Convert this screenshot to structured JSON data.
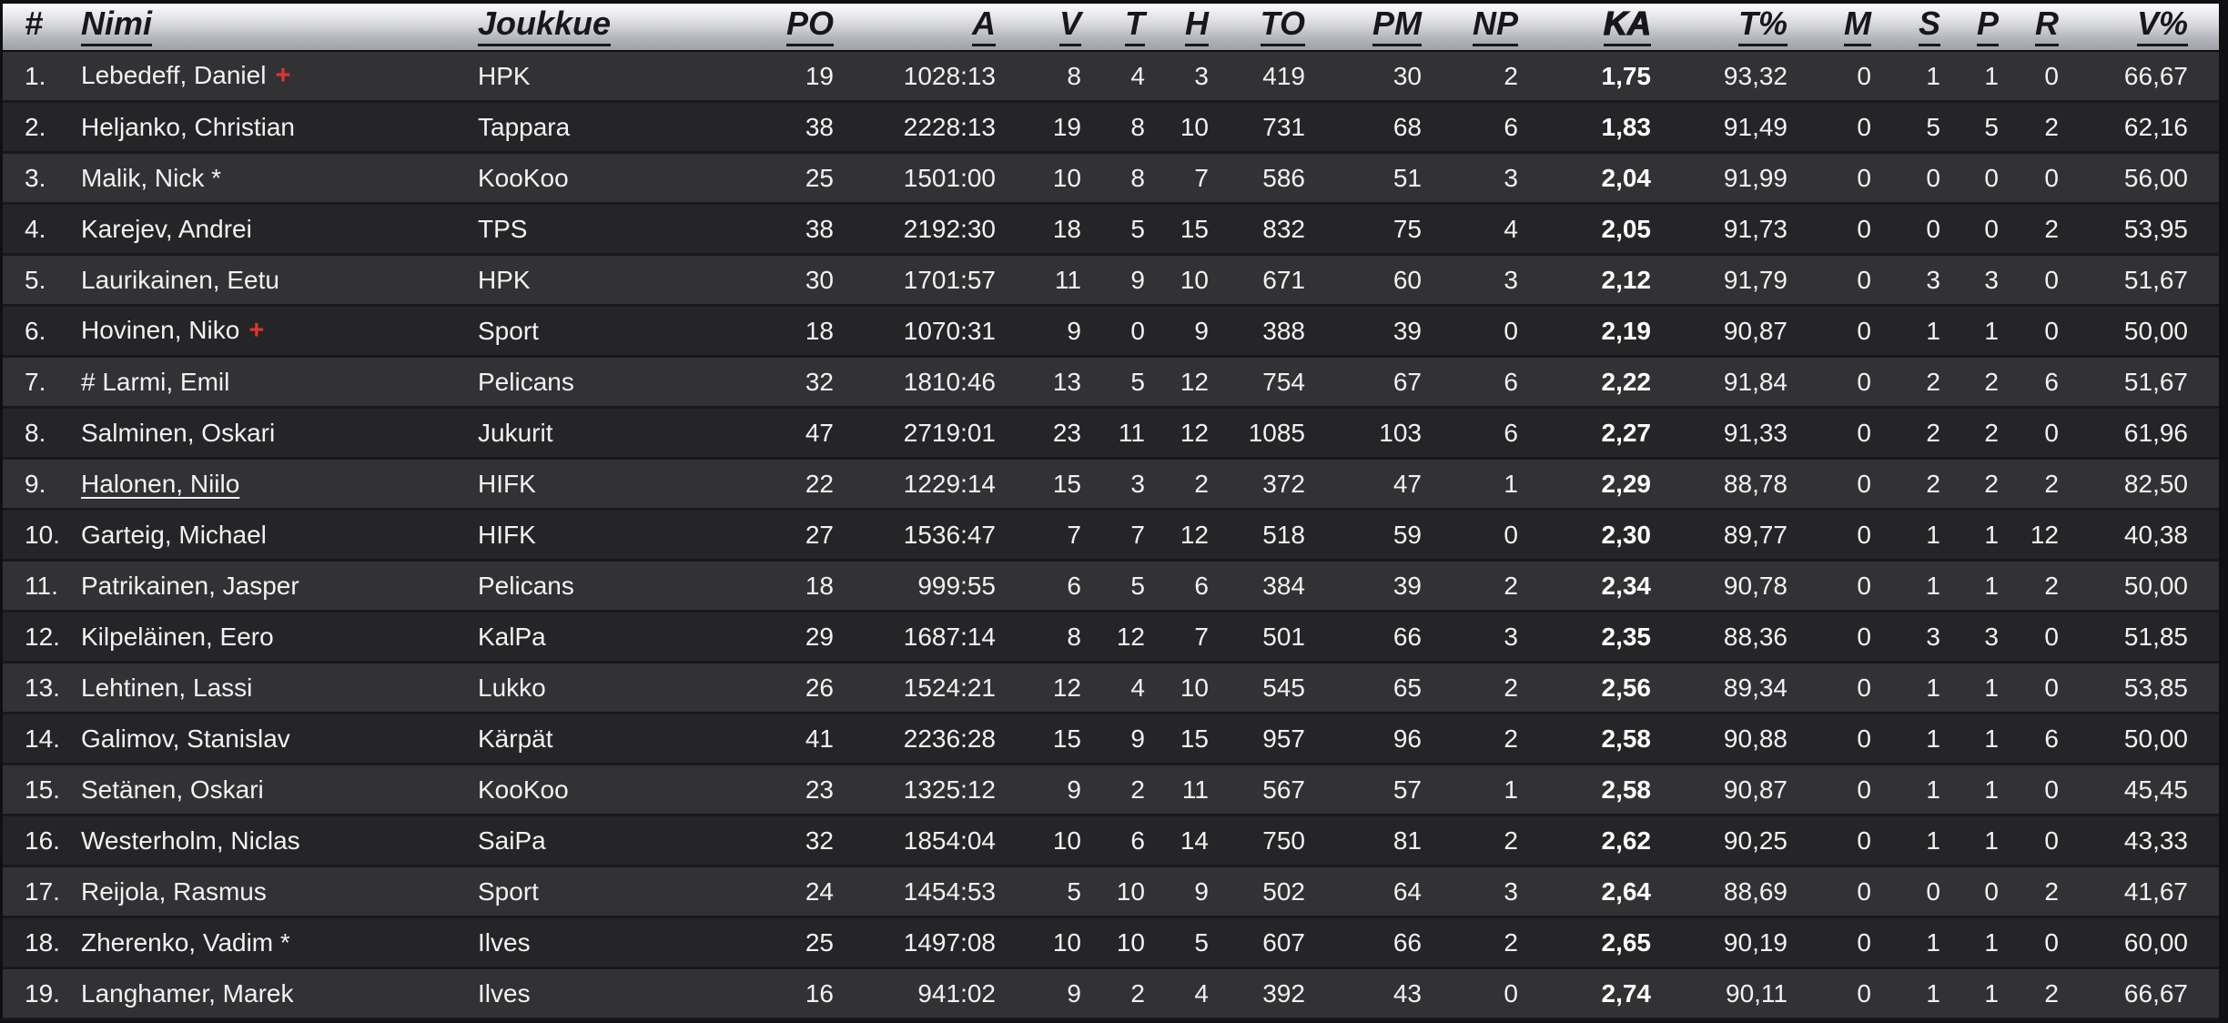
{
  "table": {
    "columns": [
      {
        "key": "rank",
        "label": "#",
        "align": "left",
        "cls": "rank",
        "underline": false,
        "bold": false,
        "sortable": false
      },
      {
        "key": "name",
        "label": "Nimi",
        "align": "left",
        "cls": "name",
        "underline": true,
        "bold": false,
        "sortable": true
      },
      {
        "key": "team",
        "label": "Joukkue",
        "align": "left",
        "cls": "team",
        "underline": true,
        "bold": false,
        "sortable": true
      },
      {
        "key": "po",
        "label": "PO",
        "align": "right",
        "cls": "",
        "underline": true,
        "bold": false,
        "sortable": true
      },
      {
        "key": "a",
        "label": "A",
        "align": "right",
        "cls": "",
        "underline": true,
        "bold": false,
        "sortable": true
      },
      {
        "key": "v",
        "label": "V",
        "align": "right",
        "cls": "",
        "underline": true,
        "bold": false,
        "sortable": true
      },
      {
        "key": "t",
        "label": "T",
        "align": "right",
        "cls": "",
        "underline": true,
        "bold": false,
        "sortable": true
      },
      {
        "key": "h",
        "label": "H",
        "align": "right",
        "cls": "",
        "underline": true,
        "bold": false,
        "sortable": true
      },
      {
        "key": "to",
        "label": "TO",
        "align": "right",
        "cls": "",
        "underline": true,
        "bold": false,
        "sortable": true
      },
      {
        "key": "pm",
        "label": "PM",
        "align": "right",
        "cls": "",
        "underline": true,
        "bold": false,
        "sortable": true
      },
      {
        "key": "np",
        "label": "NP",
        "align": "right",
        "cls": "",
        "underline": true,
        "bold": false,
        "sortable": true
      },
      {
        "key": "ka",
        "label": "KA",
        "align": "right",
        "cls": "",
        "underline": true,
        "bold": true,
        "sortable": true
      },
      {
        "key": "tp",
        "label": "T%",
        "align": "right",
        "cls": "",
        "underline": true,
        "bold": false,
        "sortable": true
      },
      {
        "key": "m",
        "label": "M",
        "align": "right",
        "cls": "",
        "underline": true,
        "bold": false,
        "sortable": true
      },
      {
        "key": "s",
        "label": "S",
        "align": "right",
        "cls": "",
        "underline": true,
        "bold": false,
        "sortable": true
      },
      {
        "key": "p",
        "label": "P",
        "align": "right",
        "cls": "",
        "underline": true,
        "bold": false,
        "sortable": true
      },
      {
        "key": "r",
        "label": "R",
        "align": "right",
        "cls": "",
        "underline": true,
        "bold": false,
        "sortable": true
      },
      {
        "key": "vp",
        "label": "V%",
        "align": "right",
        "cls": "",
        "underline": true,
        "bold": false,
        "sortable": true
      }
    ],
    "stat_keys": [
      "po",
      "a",
      "v",
      "t",
      "h",
      "to",
      "pm",
      "np",
      "ka",
      "tp",
      "m",
      "s",
      "p",
      "r",
      "vp"
    ],
    "rows": [
      {
        "rank": "1.",
        "name": "Lebedeff, Daniel",
        "plus": true,
        "underline": false,
        "team": "HPK",
        "po": "19",
        "a": "1028:13",
        "v": "8",
        "t": "4",
        "h": "3",
        "to": "419",
        "pm": "30",
        "np": "2",
        "ka": "1,75",
        "tp": "93,32",
        "m": "0",
        "s": "1",
        "p": "1",
        "r": "0",
        "vp": "66,67"
      },
      {
        "rank": "2.",
        "name": "Heljanko, Christian",
        "plus": false,
        "underline": false,
        "team": "Tappara",
        "po": "38",
        "a": "2228:13",
        "v": "19",
        "t": "8",
        "h": "10",
        "to": "731",
        "pm": "68",
        "np": "6",
        "ka": "1,83",
        "tp": "91,49",
        "m": "0",
        "s": "5",
        "p": "5",
        "r": "2",
        "vp": "62,16"
      },
      {
        "rank": "3.",
        "name": "Malik, Nick *",
        "plus": false,
        "underline": false,
        "team": "KooKoo",
        "po": "25",
        "a": "1501:00",
        "v": "10",
        "t": "8",
        "h": "7",
        "to": "586",
        "pm": "51",
        "np": "3",
        "ka": "2,04",
        "tp": "91,99",
        "m": "0",
        "s": "0",
        "p": "0",
        "r": "0",
        "vp": "56,00"
      },
      {
        "rank": "4.",
        "name": "Karejev, Andrei",
        "plus": false,
        "underline": false,
        "team": "TPS",
        "po": "38",
        "a": "2192:30",
        "v": "18",
        "t": "5",
        "h": "15",
        "to": "832",
        "pm": "75",
        "np": "4",
        "ka": "2,05",
        "tp": "91,73",
        "m": "0",
        "s": "0",
        "p": "0",
        "r": "2",
        "vp": "53,95"
      },
      {
        "rank": "5.",
        "name": "Laurikainen, Eetu",
        "plus": false,
        "underline": false,
        "team": "HPK",
        "po": "30",
        "a": "1701:57",
        "v": "11",
        "t": "9",
        "h": "10",
        "to": "671",
        "pm": "60",
        "np": "3",
        "ka": "2,12",
        "tp": "91,79",
        "m": "0",
        "s": "3",
        "p": "3",
        "r": "0",
        "vp": "51,67"
      },
      {
        "rank": "6.",
        "name": "Hovinen, Niko",
        "plus": true,
        "underline": false,
        "team": "Sport",
        "po": "18",
        "a": "1070:31",
        "v": "9",
        "t": "0",
        "h": "9",
        "to": "388",
        "pm": "39",
        "np": "0",
        "ka": "2,19",
        "tp": "90,87",
        "m": "0",
        "s": "1",
        "p": "1",
        "r": "0",
        "vp": "50,00"
      },
      {
        "rank": "7.",
        "name": "# Larmi, Emil",
        "plus": false,
        "underline": false,
        "team": "Pelicans",
        "po": "32",
        "a": "1810:46",
        "v": "13",
        "t": "5",
        "h": "12",
        "to": "754",
        "pm": "67",
        "np": "6",
        "ka": "2,22",
        "tp": "91,84",
        "m": "0",
        "s": "2",
        "p": "2",
        "r": "6",
        "vp": "51,67"
      },
      {
        "rank": "8.",
        "name": "Salminen, Oskari",
        "plus": false,
        "underline": false,
        "team": "Jukurit",
        "po": "47",
        "a": "2719:01",
        "v": "23",
        "t": "11",
        "h": "12",
        "to": "1085",
        "pm": "103",
        "np": "6",
        "ka": "2,27",
        "tp": "91,33",
        "m": "0",
        "s": "2",
        "p": "2",
        "r": "0",
        "vp": "61,96"
      },
      {
        "rank": "9.",
        "name": "Halonen, Niilo",
        "plus": false,
        "underline": true,
        "team": "HIFK",
        "po": "22",
        "a": "1229:14",
        "v": "15",
        "t": "3",
        "h": "2",
        "to": "372",
        "pm": "47",
        "np": "1",
        "ka": "2,29",
        "tp": "88,78",
        "m": "0",
        "s": "2",
        "p": "2",
        "r": "2",
        "vp": "82,50"
      },
      {
        "rank": "10.",
        "name": "Garteig, Michael",
        "plus": false,
        "underline": false,
        "team": "HIFK",
        "po": "27",
        "a": "1536:47",
        "v": "7",
        "t": "7",
        "h": "12",
        "to": "518",
        "pm": "59",
        "np": "0",
        "ka": "2,30",
        "tp": "89,77",
        "m": "0",
        "s": "1",
        "p": "1",
        "r": "12",
        "vp": "40,38"
      },
      {
        "rank": "11.",
        "name": "Patrikainen, Jasper",
        "plus": false,
        "underline": false,
        "team": "Pelicans",
        "po": "18",
        "a": "999:55",
        "v": "6",
        "t": "5",
        "h": "6",
        "to": "384",
        "pm": "39",
        "np": "2",
        "ka": "2,34",
        "tp": "90,78",
        "m": "0",
        "s": "1",
        "p": "1",
        "r": "2",
        "vp": "50,00"
      },
      {
        "rank": "12.",
        "name": "Kilpeläinen, Eero",
        "plus": false,
        "underline": false,
        "team": "KalPa",
        "po": "29",
        "a": "1687:14",
        "v": "8",
        "t": "12",
        "h": "7",
        "to": "501",
        "pm": "66",
        "np": "3",
        "ka": "2,35",
        "tp": "88,36",
        "m": "0",
        "s": "3",
        "p": "3",
        "r": "0",
        "vp": "51,85"
      },
      {
        "rank": "13.",
        "name": "Lehtinen, Lassi",
        "plus": false,
        "underline": false,
        "team": "Lukko",
        "po": "26",
        "a": "1524:21",
        "v": "12",
        "t": "4",
        "h": "10",
        "to": "545",
        "pm": "65",
        "np": "2",
        "ka": "2,56",
        "tp": "89,34",
        "m": "0",
        "s": "1",
        "p": "1",
        "r": "0",
        "vp": "53,85"
      },
      {
        "rank": "14.",
        "name": "Galimov, Stanislav",
        "plus": false,
        "underline": false,
        "team": "Kärpät",
        "po": "41",
        "a": "2236:28",
        "v": "15",
        "t": "9",
        "h": "15",
        "to": "957",
        "pm": "96",
        "np": "2",
        "ka": "2,58",
        "tp": "90,88",
        "m": "0",
        "s": "1",
        "p": "1",
        "r": "6",
        "vp": "50,00"
      },
      {
        "rank": "15.",
        "name": "Setänen, Oskari",
        "plus": false,
        "underline": false,
        "team": "KooKoo",
        "po": "23",
        "a": "1325:12",
        "v": "9",
        "t": "2",
        "h": "11",
        "to": "567",
        "pm": "57",
        "np": "1",
        "ka": "2,58",
        "tp": "90,87",
        "m": "0",
        "s": "1",
        "p": "1",
        "r": "0",
        "vp": "45,45"
      },
      {
        "rank": "16.",
        "name": "Westerholm, Niclas",
        "plus": false,
        "underline": false,
        "team": "SaiPa",
        "po": "32",
        "a": "1854:04",
        "v": "10",
        "t": "6",
        "h": "14",
        "to": "750",
        "pm": "81",
        "np": "2",
        "ka": "2,62",
        "tp": "90,25",
        "m": "0",
        "s": "1",
        "p": "1",
        "r": "0",
        "vp": "43,33"
      },
      {
        "rank": "17.",
        "name": "Reijola, Rasmus",
        "plus": false,
        "underline": false,
        "team": "Sport",
        "po": "24",
        "a": "1454:53",
        "v": "5",
        "t": "10",
        "h": "9",
        "to": "502",
        "pm": "64",
        "np": "3",
        "ka": "2,64",
        "tp": "88,69",
        "m": "0",
        "s": "0",
        "p": "0",
        "r": "2",
        "vp": "41,67"
      },
      {
        "rank": "18.",
        "name": "Zherenko, Vadim *",
        "plus": false,
        "underline": false,
        "team": "Ilves",
        "po": "25",
        "a": "1497:08",
        "v": "10",
        "t": "10",
        "h": "5",
        "to": "607",
        "pm": "66",
        "np": "2",
        "ka": "2,65",
        "tp": "90,19",
        "m": "0",
        "s": "1",
        "p": "1",
        "r": "0",
        "vp": "60,00"
      },
      {
        "rank": "19.",
        "name": "Langhamer, Marek",
        "plus": false,
        "underline": false,
        "team": "Ilves",
        "po": "16",
        "a": "941:02",
        "v": "9",
        "t": "2",
        "h": "4",
        "to": "392",
        "pm": "43",
        "np": "0",
        "ka": "2,74",
        "tp": "90,11",
        "m": "0",
        "s": "1",
        "p": "1",
        "r": "2",
        "vp": "66,67"
      }
    ]
  },
  "icons": {
    "injury_plus": "+"
  },
  "colors": {
    "accent_red": "#e0342c",
    "row_odd": "#323234",
    "row_even": "#252527",
    "header_text": "#17171d",
    "body_text": "#f2f2f3",
    "frame": "#101012"
  }
}
